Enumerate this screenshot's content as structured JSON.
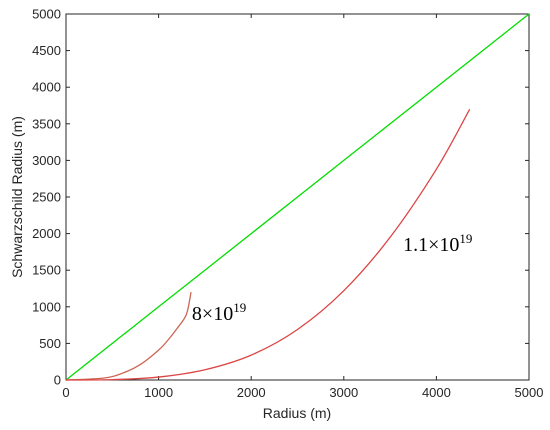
{
  "chart_data": {
    "type": "line",
    "xlabel": "Radius (m)",
    "ylabel": "Schwarzschild Radius (m)",
    "xlim": [
      0,
      5000
    ],
    "ylim": [
      0,
      5000
    ],
    "xticks": [
      0,
      1000,
      2000,
      3000,
      4000,
      5000
    ],
    "yticks": [
      0,
      500,
      1000,
      1500,
      2000,
      2500,
      3000,
      3500,
      4000,
      4500,
      5000
    ],
    "grid": false,
    "series": [
      {
        "color": "#00dd00",
        "x": [
          0,
          1000,
          2000,
          3000,
          4000,
          5000
        ],
        "y": [
          0,
          1000,
          2000,
          3000,
          4000,
          5000
        ]
      },
      {
        "color": "#cc6655",
        "x": [
          0,
          400,
          600,
          800,
          1000,
          1100,
          1200,
          1300,
          1350
        ],
        "y": [
          0,
          26,
          88,
          209,
          408,
          543,
          705,
          896,
          1200
        ]
      },
      {
        "color": "#dd4444",
        "x": [
          0,
          500,
          1000,
          1500,
          2000,
          2500,
          3000,
          3500,
          4000,
          4360
        ],
        "y": [
          0,
          5,
          40,
          140,
          340,
          690,
          1220,
          1950,
          2880,
          3700
        ]
      }
    ],
    "annotations": [
      {
        "base": "8×10",
        "exp": "19",
        "x": 1360,
        "y": 820
      },
      {
        "base": "1.1×10",
        "exp": "19",
        "x": 3640,
        "y": 1760
      }
    ]
  }
}
